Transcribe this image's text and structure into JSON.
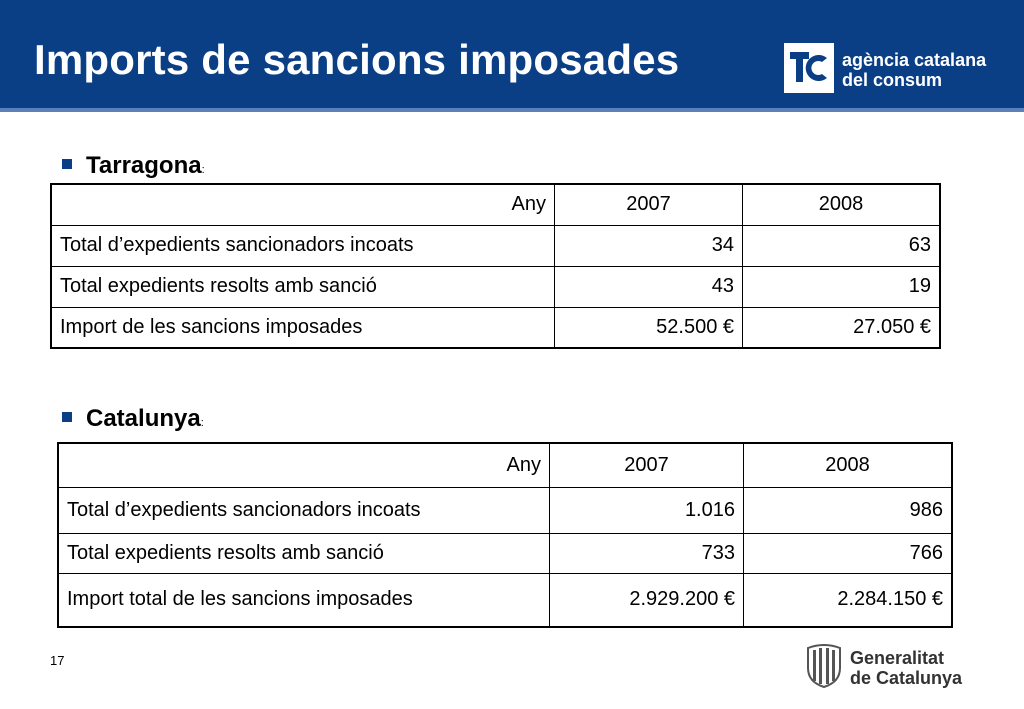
{
  "title": "Imports de sancions imposades",
  "agency": {
    "line1": "agència catalana",
    "line2": "del consum",
    "color": "#0a3f86"
  },
  "sections": [
    {
      "label": "Tarragona",
      "colon": ":",
      "header": [
        "Any",
        "2007",
        "2008"
      ],
      "rows": [
        [
          "Total d’expedients sancionadors incoats",
          "34",
          "63"
        ],
        [
          "Total expedients resolts amb sanció",
          "43",
          "19"
        ],
        [
          "Import de les sancions imposades",
          "52.500 €",
          "27.050 €"
        ]
      ]
    },
    {
      "label": "Catalunya",
      "colon": ":",
      "header": [
        "Any",
        "2007",
        "2008"
      ],
      "rows": [
        [
          "Total d’expedients sancionadors incoats",
          "1.016",
          "986"
        ],
        [
          "Total expedients resolts amb sanció",
          "733",
          "766"
        ],
        [
          "Import total de les sancions imposades",
          "2.929.200 €",
          "2.284.150 €"
        ]
      ]
    }
  ],
  "page_number": "17",
  "generalitat": {
    "line1": "Generalitat",
    "line2": "de Catalunya"
  }
}
